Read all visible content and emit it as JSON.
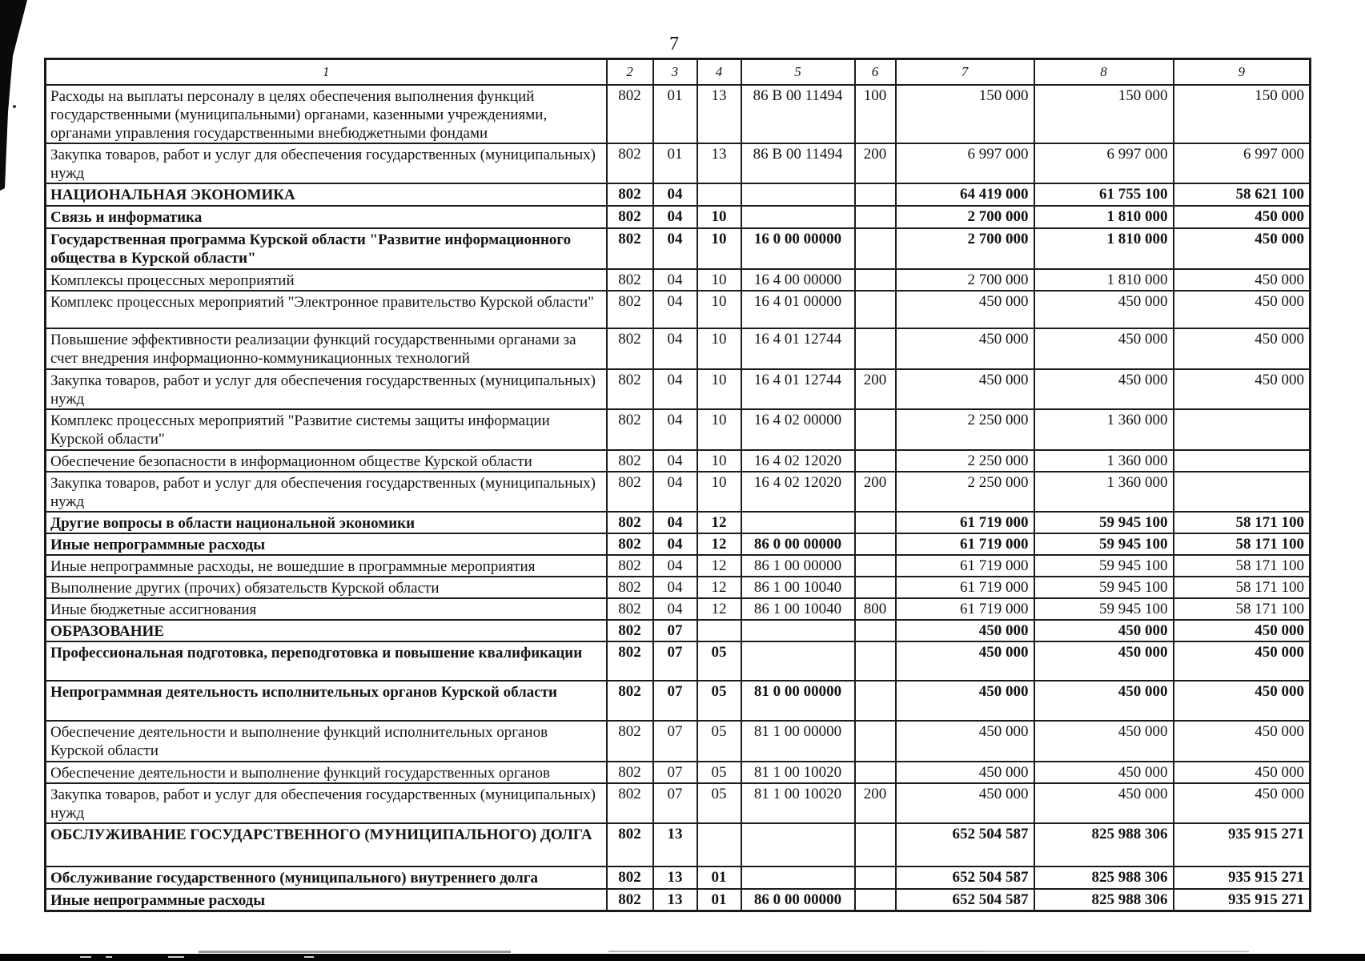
{
  "page": {
    "number": "7"
  },
  "table": {
    "column_headers": [
      "1",
      "2",
      "3",
      "4",
      "5",
      "6",
      "7",
      "8",
      "9"
    ],
    "rows": [
      {
        "name": "Расходы на выплаты персоналу в целях обеспечения выполнения функций государственными (муниципальными) органами, казенными учреждениями, органами управления государственными внебюджетными фондами",
        "bold": false,
        "c2": "802",
        "c3": "01",
        "c4": "13",
        "c5": "86 В 00 11494",
        "c6": "100",
        "c7": "150 000",
        "c8": "150 000",
        "c9": "150 000"
      },
      {
        "name": "Закупка товаров, работ и услуг для обеспечения государственных (муниципальных) нужд",
        "bold": false,
        "c2": "802",
        "c3": "01",
        "c4": "13",
        "c5": "86 В 00 11494",
        "c6": "200",
        "c7": "6 997 000",
        "c8": "6 997 000",
        "c9": "6 997 000"
      },
      {
        "name": "НАЦИОНАЛЬНАЯ ЭКОНОМИКА",
        "bold": true,
        "c2": "802",
        "c3": "04",
        "c4": "",
        "c5": "",
        "c6": "",
        "c7": "64 419 000",
        "c8": "61 755 100",
        "c9": "58 621 100"
      },
      {
        "name": "Связь и информатика",
        "bold": true,
        "c2": "802",
        "c3": "04",
        "c4": "10",
        "c5": "",
        "c6": "",
        "c7": "2 700 000",
        "c8": "1 810 000",
        "c9": "450 000"
      },
      {
        "name": "Государственная программа Курской области \"Развитие информационного общества в Курской области\"",
        "bold": true,
        "c2": "802",
        "c3": "04",
        "c4": "10",
        "c5": "16 0 00 00000",
        "c6": "",
        "c7": "2 700 000",
        "c8": "1 810 000",
        "c9": "450 000"
      },
      {
        "name": "Комплексы процессных мероприятий",
        "bold": false,
        "c2": "802",
        "c3": "04",
        "c4": "10",
        "c5": "16 4 00 00000",
        "c6": "",
        "c7": "2 700 000",
        "c8": "1 810 000",
        "c9": "450 000"
      },
      {
        "name": "Комплекс процессных мероприятий \"Электронное правительство Курской области\"",
        "bold": false,
        "c2": "802",
        "c3": "04",
        "c4": "10",
        "c5": "16 4 01 00000",
        "c6": "",
        "c7": "450 000",
        "c8": "450 000",
        "c9": "450 000"
      },
      {
        "name": "Повышение эффективности реализации функций государственными органами за счет внедрения информационно-коммуникационных технологий",
        "bold": false,
        "c2": "802",
        "c3": "04",
        "c4": "10",
        "c5": "16 4 01 12744",
        "c6": "",
        "c7": "450 000",
        "c8": "450 000",
        "c9": "450 000"
      },
      {
        "name": "Закупка товаров, работ и услуг для обеспечения государственных (муниципальных) нужд",
        "bold": false,
        "c2": "802",
        "c3": "04",
        "c4": "10",
        "c5": "16 4 01 12744",
        "c6": "200",
        "c7": "450 000",
        "c8": "450 000",
        "c9": "450 000"
      },
      {
        "name": "Комплекс процессных мероприятий \"Развитие системы защиты информации Курской области\"",
        "bold": false,
        "c2": "802",
        "c3": "04",
        "c4": "10",
        "c5": "16 4 02 00000",
        "c6": "",
        "c7": "2 250 000",
        "c8": "1 360 000",
        "c9": ""
      },
      {
        "name": "Обеспечение безопасности в информационном обществе Курской области",
        "bold": false,
        "c2": "802",
        "c3": "04",
        "c4": "10",
        "c5": "16 4 02 12020",
        "c6": "",
        "c7": "2 250 000",
        "c8": "1 360 000",
        "c9": ""
      },
      {
        "name": "Закупка товаров, работ и услуг для обеспечения государственных (муниципальных) нужд",
        "bold": false,
        "c2": "802",
        "c3": "04",
        "c4": "10",
        "c5": "16 4 02 12020",
        "c6": "200",
        "c7": "2 250 000",
        "c8": "1 360 000",
        "c9": ""
      },
      {
        "name": "Другие вопросы в области национальной экономики",
        "bold": true,
        "c2": "802",
        "c3": "04",
        "c4": "12",
        "c5": "",
        "c6": "",
        "c7": "61 719 000",
        "c8": "59 945 100",
        "c9": "58 171 100"
      },
      {
        "name": "Иные непрограммные расходы",
        "bold": true,
        "c2": "802",
        "c3": "04",
        "c4": "12",
        "c5": "86 0 00 00000",
        "c6": "",
        "c7": "61 719 000",
        "c8": "59 945 100",
        "c9": "58 171 100"
      },
      {
        "name": "Иные непрограммные расходы, не вошедшие в программные мероприятия",
        "bold": false,
        "c2": "802",
        "c3": "04",
        "c4": "12",
        "c5": "86 1 00 00000",
        "c6": "",
        "c7": "61 719 000",
        "c8": "59 945 100",
        "c9": "58 171 100"
      },
      {
        "name": "Выполнение других (прочих) обязательств Курской области",
        "bold": false,
        "c2": "802",
        "c3": "04",
        "c4": "12",
        "c5": "86 1 00 10040",
        "c6": "",
        "c7": "61 719 000",
        "c8": "59 945 100",
        "c9": "58 171 100"
      },
      {
        "name": "Иные бюджетные ассигнования",
        "bold": false,
        "c2": "802",
        "c3": "04",
        "c4": "12",
        "c5": "86 1 00 10040",
        "c6": "800",
        "c7": "61 719 000",
        "c8": "59 945 100",
        "c9": "58 171 100"
      },
      {
        "name": "ОБРАЗОВАНИЕ",
        "bold": true,
        "c2": "802",
        "c3": "07",
        "c4": "",
        "c5": "",
        "c6": "",
        "c7": "450 000",
        "c8": "450 000",
        "c9": "450 000"
      },
      {
        "name": "Профессиональная подготовка, переподготовка и повышение квалификации",
        "bold": true,
        "c2": "802",
        "c3": "07",
        "c4": "05",
        "c5": "",
        "c6": "",
        "c7": "450 000",
        "c8": "450 000",
        "c9": "450 000"
      },
      {
        "name": "Непрограммная деятельность исполнительных органов Курской области",
        "bold": true,
        "c2": "802",
        "c3": "07",
        "c4": "05",
        "c5": "81 0 00 00000",
        "c6": "",
        "c7": "450 000",
        "c8": "450 000",
        "c9": "450 000"
      },
      {
        "name": "Обеспечение деятельности и выполнение функций исполнительных органов Курской области",
        "bold": false,
        "c2": "802",
        "c3": "07",
        "c4": "05",
        "c5": "81 1 00 00000",
        "c6": "",
        "c7": "450 000",
        "c8": "450 000",
        "c9": "450 000"
      },
      {
        "name": "Обеспечение деятельности и выполнение функций государственных органов",
        "bold": false,
        "c2": "802",
        "c3": "07",
        "c4": "05",
        "c5": "81 1 00 10020",
        "c6": "",
        "c7": "450 000",
        "c8": "450 000",
        "c9": "450 000"
      },
      {
        "name": "Закупка товаров, работ и услуг для обеспечения государственных (муниципальных) нужд",
        "bold": false,
        "c2": "802",
        "c3": "07",
        "c4": "05",
        "c5": "81 1 00 10020",
        "c6": "200",
        "c7": "450 000",
        "c8": "450 000",
        "c9": "450 000"
      },
      {
        "name": "ОБСЛУЖИВАНИЕ ГОСУДАРСТВЕННОГО (МУНИЦИПАЛЬНОГО) ДОЛГА",
        "bold": true,
        "c2": "802",
        "c3": "13",
        "c4": "",
        "c5": "",
        "c6": "",
        "c7": "652 504 587",
        "c8": "825 988 306",
        "c9": "935 915 271"
      },
      {
        "name": "Обслуживание государственного (муниципального) внутреннего долга",
        "bold": true,
        "c2": "802",
        "c3": "13",
        "c4": "01",
        "c5": "",
        "c6": "",
        "c7": "652 504 587",
        "c8": "825 988 306",
        "c9": "935 915 271"
      },
      {
        "name": "Иные непрограммные расходы",
        "bold": true,
        "c2": "802",
        "c3": "13",
        "c4": "01",
        "c5": "86 0 00 00000",
        "c6": "",
        "c7": "652 504 587",
        "c8": "825 988 306",
        "c9": "935 915 271"
      }
    ]
  }
}
